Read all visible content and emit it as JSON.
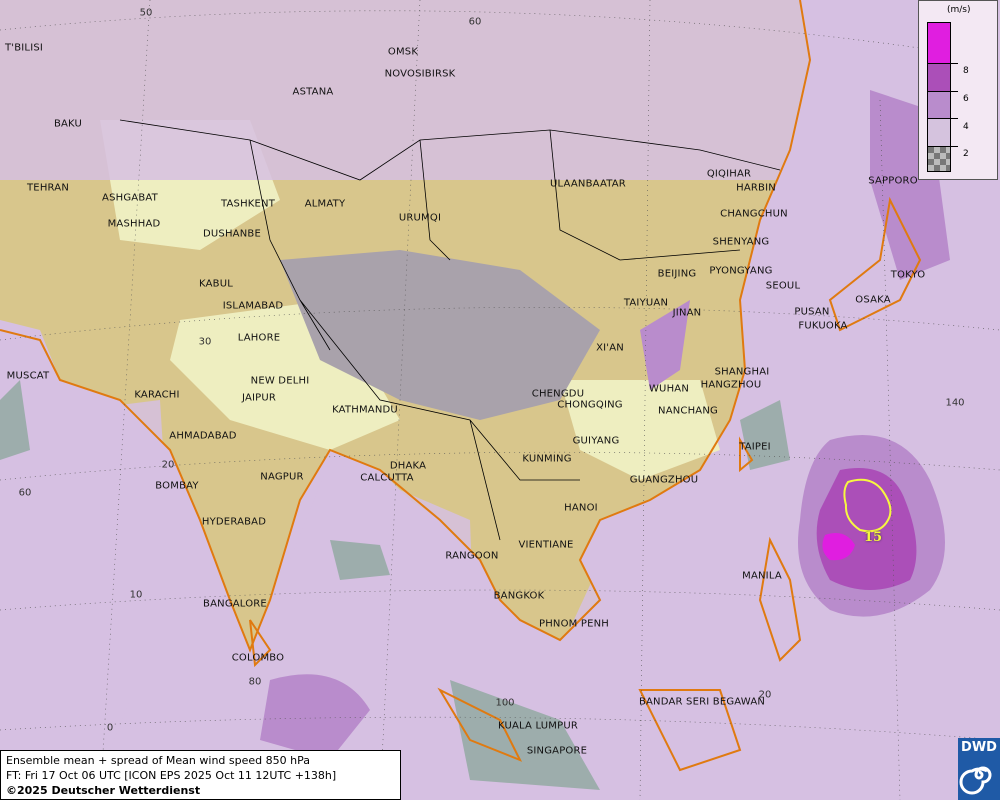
{
  "map": {
    "title": "Ensemble mean + spread of Mean wind speed 850 hPa",
    "forecast_time": "FT: Fri 17 Oct 06 UTC [ICON EPS 2025 Oct 11 12UTC +138h]",
    "copyright": "©2025 Deutscher Wetterdienst",
    "logo_text": "DWD",
    "contour_label": "15",
    "colors": {
      "ocean": "#d6c0e2",
      "spread_mid": "#b98ccc",
      "spread_high": "#ab4fb8",
      "spread_max": "#e01ee0",
      "low_spread": "#8fa89f",
      "land": "#d8c68c",
      "plateau": "#a9a2ab",
      "lowland": "#eeeec0",
      "border": "#000000",
      "coast": "#e07a10",
      "contour": "#f7f740"
    },
    "grid_labels": [
      "50",
      "60",
      "30",
      "20",
      "10",
      "0",
      "60",
      "80",
      "100",
      "120",
      "140",
      "20"
    ],
    "cities": [
      "OMSK",
      "NOVOSIBIRSK",
      "ASTANA",
      "T'BILISI",
      "BAKU",
      "TEHRAN",
      "ASHGABAT",
      "MASHHAD",
      "TASHKENT",
      "ALMATY",
      "URUMQI",
      "DUSHANBE",
      "KABUL",
      "ISLAMABAD",
      "LAHORE",
      "NEW DELHI",
      "JAIPUR",
      "KARACHI",
      "MUSCAT",
      "AHMADABAD",
      "BOMBAY",
      "NAGPUR",
      "HYDERABAD",
      "BANGALORE",
      "COLOMBO",
      "KATHMANDU",
      "DHAKA",
      "CALCUTTA",
      "ULAANBAATAR",
      "QIQIHAR",
      "HARBIN",
      "CHANGCHUN",
      "SHENYANG",
      "BEIJING",
      "PYONGYANG",
      "SEOUL",
      "PUSAN",
      "FUKUOKA",
      "SAPPORO",
      "TOKYO",
      "OSAKA",
      "TAIYUAN",
      "JINAN",
      "XI'AN",
      "SHANGHAI",
      "HANGZHOU",
      "WUHAN",
      "NANCHANG",
      "CHENGDU",
      "CHONGQING",
      "GUIYANG",
      "KUNMING",
      "TAIPEI",
      "GUANGZHOU",
      "HANOI",
      "VIENTIANE",
      "RANGOON",
      "BANGKOK",
      "PHNOM PENH",
      "MANILA",
      "BANDAR SERI BEGAWAN",
      "KUALA LUMPUR",
      "SINGAPORE"
    ]
  },
  "legend": {
    "unit": "(m/s)",
    "ticks": [
      "8",
      "6",
      "4",
      "2"
    ],
    "swatches": [
      "#e01ee0",
      "#ab4fb8",
      "#b98ccc",
      "#d5c3de",
      "checker"
    ]
  }
}
